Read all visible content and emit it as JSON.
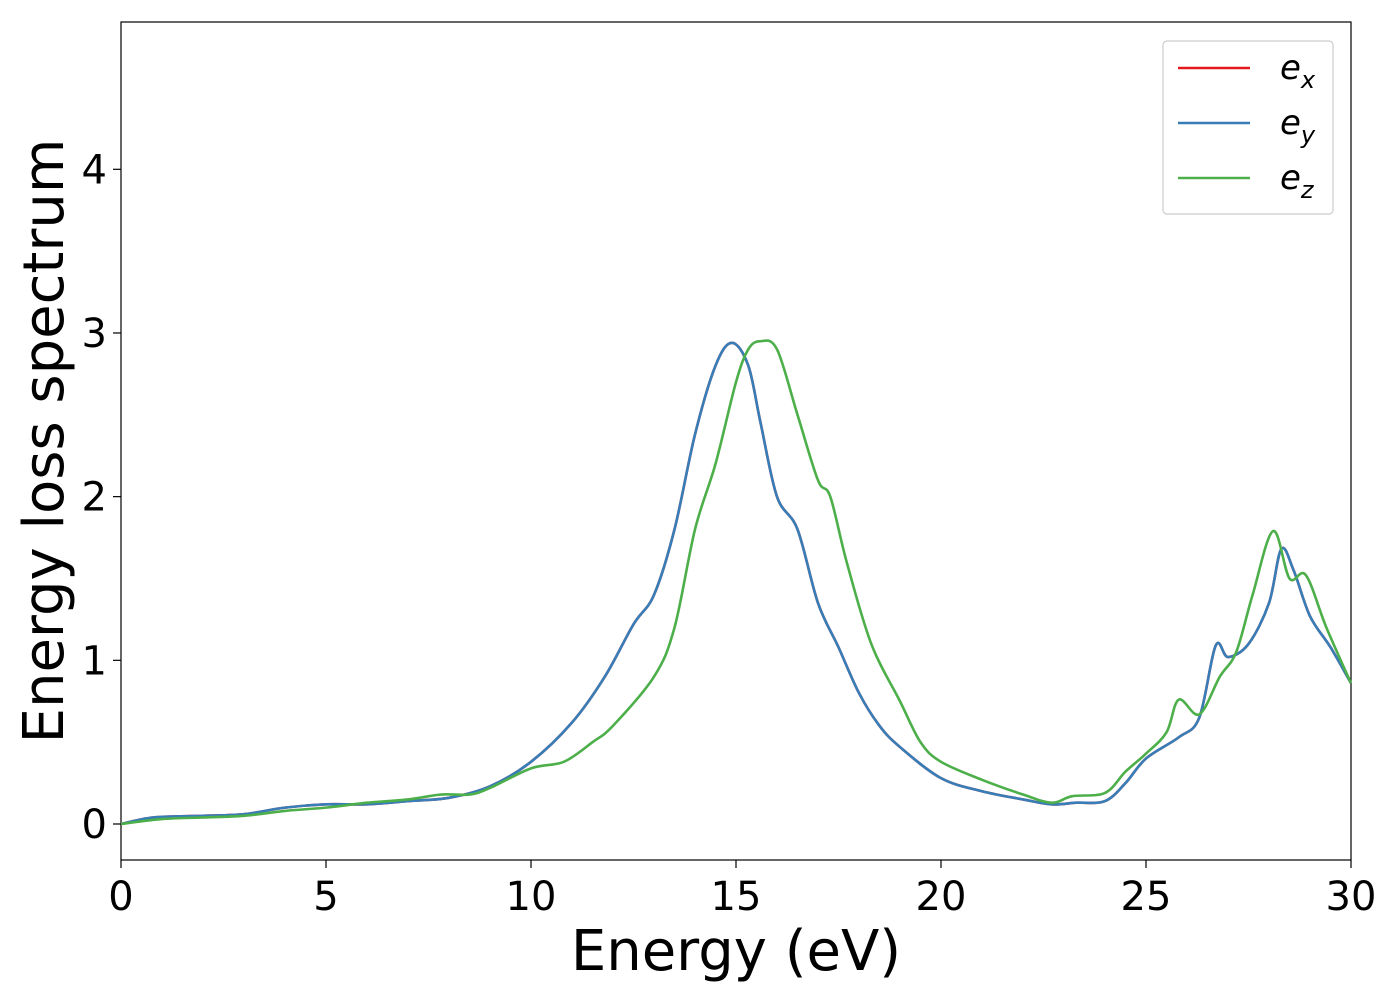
{
  "chart_data": {
    "type": "line",
    "title": "",
    "xlabel": "Energy (eV)",
    "ylabel": "Energy loss spectrum",
    "xlim": [
      0,
      30
    ],
    "ylim": [
      -0.22,
      4.9
    ],
    "xticks": [
      0,
      5,
      10,
      15,
      20,
      25,
      30
    ],
    "yticks": [
      0,
      1,
      2,
      3,
      4
    ],
    "xtick_labels": [
      "0",
      "5",
      "10",
      "15",
      "20",
      "25",
      "30"
    ],
    "ytick_labels": [
      "0",
      "1",
      "2",
      "3",
      "4"
    ],
    "grid": false,
    "legend_position": "top-right",
    "series": [
      {
        "name": "e",
        "subscript": "x",
        "color": "#e41a1c",
        "x": [
          0,
          0.8,
          2,
          3,
          4,
          5,
          6,
          7,
          8,
          9,
          10,
          11,
          11.8,
          12.5,
          13,
          13.5,
          14,
          14.5,
          14.9,
          15.3,
          15.6,
          16,
          16.5,
          17,
          17.5,
          18,
          18.5,
          19,
          20,
          21,
          22,
          22.7,
          23.3,
          24,
          24.5,
          25,
          25.8,
          26.3,
          26.7,
          27,
          27.5,
          28,
          28.3,
          28.6,
          29,
          29.5,
          30
        ],
        "values": [
          0.0,
          0.04,
          0.05,
          0.06,
          0.1,
          0.12,
          0.12,
          0.14,
          0.16,
          0.23,
          0.38,
          0.62,
          0.9,
          1.22,
          1.4,
          1.8,
          2.38,
          2.8,
          2.94,
          2.8,
          2.45,
          2.0,
          1.8,
          1.35,
          1.08,
          0.8,
          0.6,
          0.47,
          0.28,
          0.2,
          0.15,
          0.12,
          0.13,
          0.14,
          0.25,
          0.4,
          0.53,
          0.65,
          1.09,
          1.02,
          1.1,
          1.35,
          1.68,
          1.55,
          1.27,
          1.08,
          0.86
        ]
      },
      {
        "name": "e",
        "subscript": "y",
        "color": "#377eb8",
        "x": [
          0,
          0.8,
          2,
          3,
          4,
          5,
          6,
          7,
          8,
          9,
          10,
          11,
          11.8,
          12.5,
          13,
          13.5,
          14,
          14.5,
          14.9,
          15.3,
          15.6,
          16,
          16.5,
          17,
          17.5,
          18,
          18.5,
          19,
          20,
          21,
          22,
          22.7,
          23.3,
          24,
          24.5,
          25,
          25.8,
          26.3,
          26.7,
          27,
          27.5,
          28,
          28.3,
          28.6,
          29,
          29.5,
          30
        ],
        "values": [
          0.0,
          0.04,
          0.05,
          0.06,
          0.1,
          0.12,
          0.12,
          0.14,
          0.16,
          0.23,
          0.38,
          0.62,
          0.9,
          1.22,
          1.4,
          1.8,
          2.38,
          2.8,
          2.94,
          2.8,
          2.45,
          2.0,
          1.8,
          1.35,
          1.08,
          0.8,
          0.6,
          0.47,
          0.28,
          0.2,
          0.15,
          0.12,
          0.13,
          0.14,
          0.25,
          0.4,
          0.53,
          0.65,
          1.09,
          1.02,
          1.1,
          1.35,
          1.68,
          1.55,
          1.27,
          1.08,
          0.86
        ]
      },
      {
        "name": "e",
        "subscript": "z",
        "color": "#4daf4a",
        "x": [
          0,
          1,
          2,
          3,
          4,
          5,
          6,
          7,
          7.8,
          8.5,
          9,
          10,
          10.8,
          11.5,
          12,
          13,
          13.5,
          14,
          14.5,
          15,
          15.3,
          15.6,
          16,
          16.5,
          17,
          17.3,
          17.7,
          18.3,
          19,
          19.5,
          20,
          21,
          22,
          22.7,
          23.2,
          24,
          24.5,
          25,
          25.5,
          25.8,
          26.3,
          26.8,
          27.2,
          27.6,
          28.1,
          28.5,
          28.9,
          29.4,
          30
        ],
        "values": [
          0.0,
          0.03,
          0.04,
          0.05,
          0.08,
          0.1,
          0.13,
          0.15,
          0.18,
          0.18,
          0.22,
          0.34,
          0.38,
          0.5,
          0.6,
          0.9,
          1.2,
          1.8,
          2.2,
          2.7,
          2.9,
          2.95,
          2.9,
          2.5,
          2.1,
          2.0,
          1.6,
          1.1,
          0.75,
          0.5,
          0.38,
          0.27,
          0.18,
          0.13,
          0.17,
          0.19,
          0.32,
          0.43,
          0.56,
          0.76,
          0.67,
          0.9,
          1.05,
          1.4,
          1.79,
          1.5,
          1.52,
          1.2,
          0.86
        ]
      }
    ]
  }
}
